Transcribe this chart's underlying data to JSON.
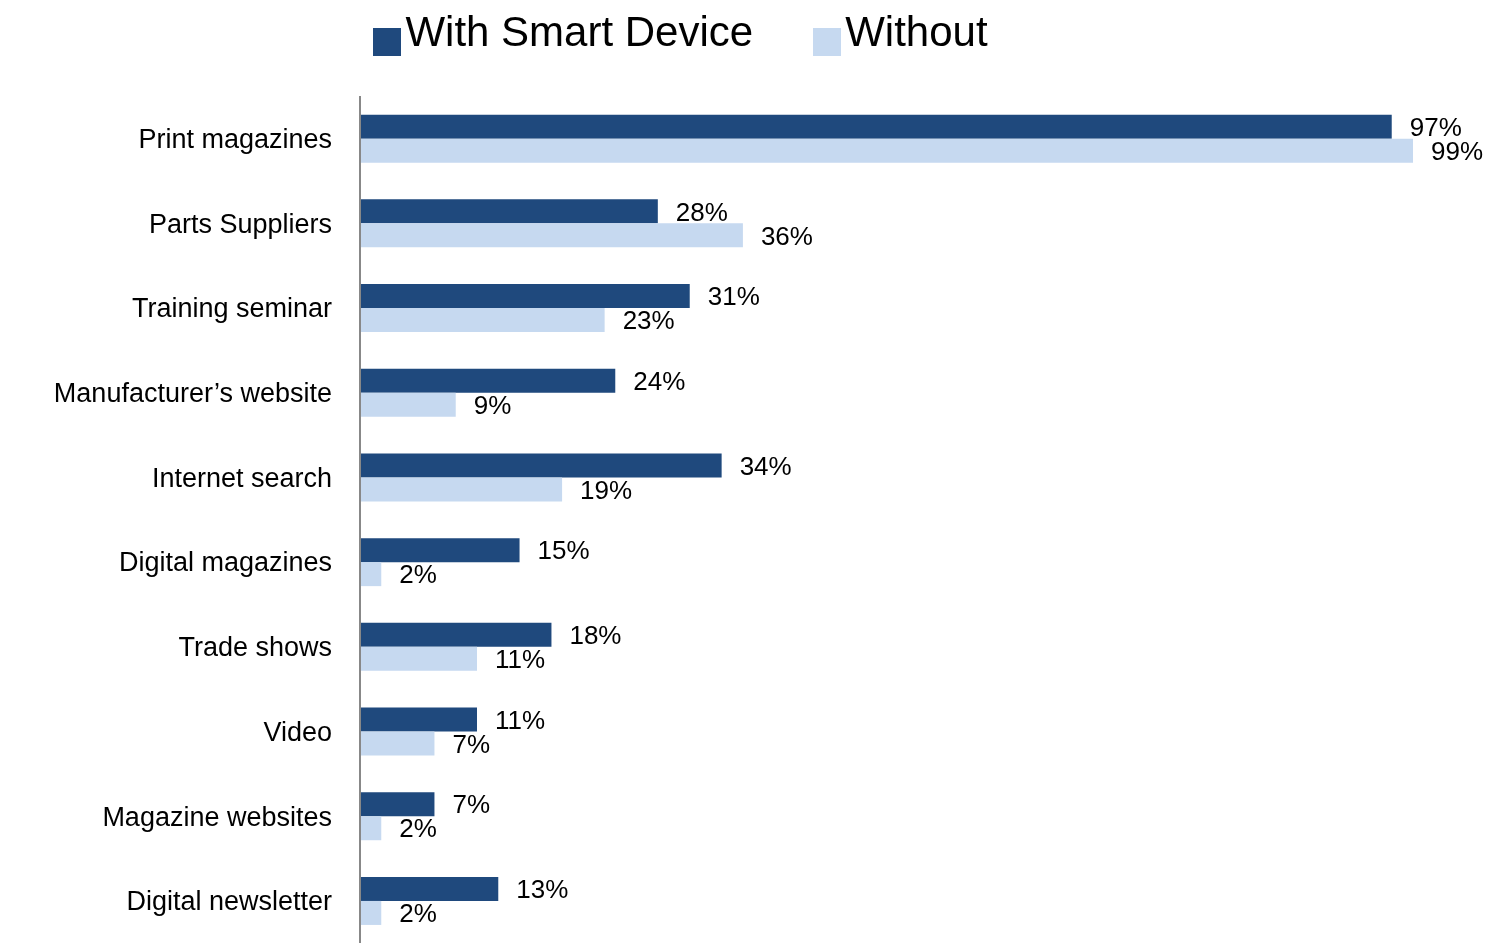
{
  "chart_data": {
    "type": "bar",
    "orientation": "horizontal",
    "categories": [
      "Print magazines",
      "Parts Suppliers",
      "Training seminar",
      "Manufacturer’s website",
      "Internet search",
      "Digital magazines",
      "Trade shows",
      "Video",
      "Magazine websites",
      "Digital newsletter"
    ],
    "series": [
      {
        "name": "With Smart Device",
        "color": "#1f497d",
        "values": [
          97,
          28,
          31,
          24,
          34,
          15,
          18,
          11,
          7,
          13
        ],
        "value_labels": [
          "97%",
          "28%",
          "31%",
          "24%",
          "34%",
          "15%",
          "18%",
          "11%",
          "7%",
          "13%"
        ]
      },
      {
        "name": "Without",
        "color": "#c6d9f0",
        "values": [
          99,
          36,
          23,
          9,
          19,
          2,
          11,
          7,
          2,
          2
        ],
        "value_labels": [
          "99%",
          "36%",
          "23%",
          "9%",
          "19%",
          "2%",
          "11%",
          "7%",
          "2%",
          "2%"
        ]
      }
    ],
    "legend": "top",
    "tick_labels": "y",
    "grid": false
  }
}
